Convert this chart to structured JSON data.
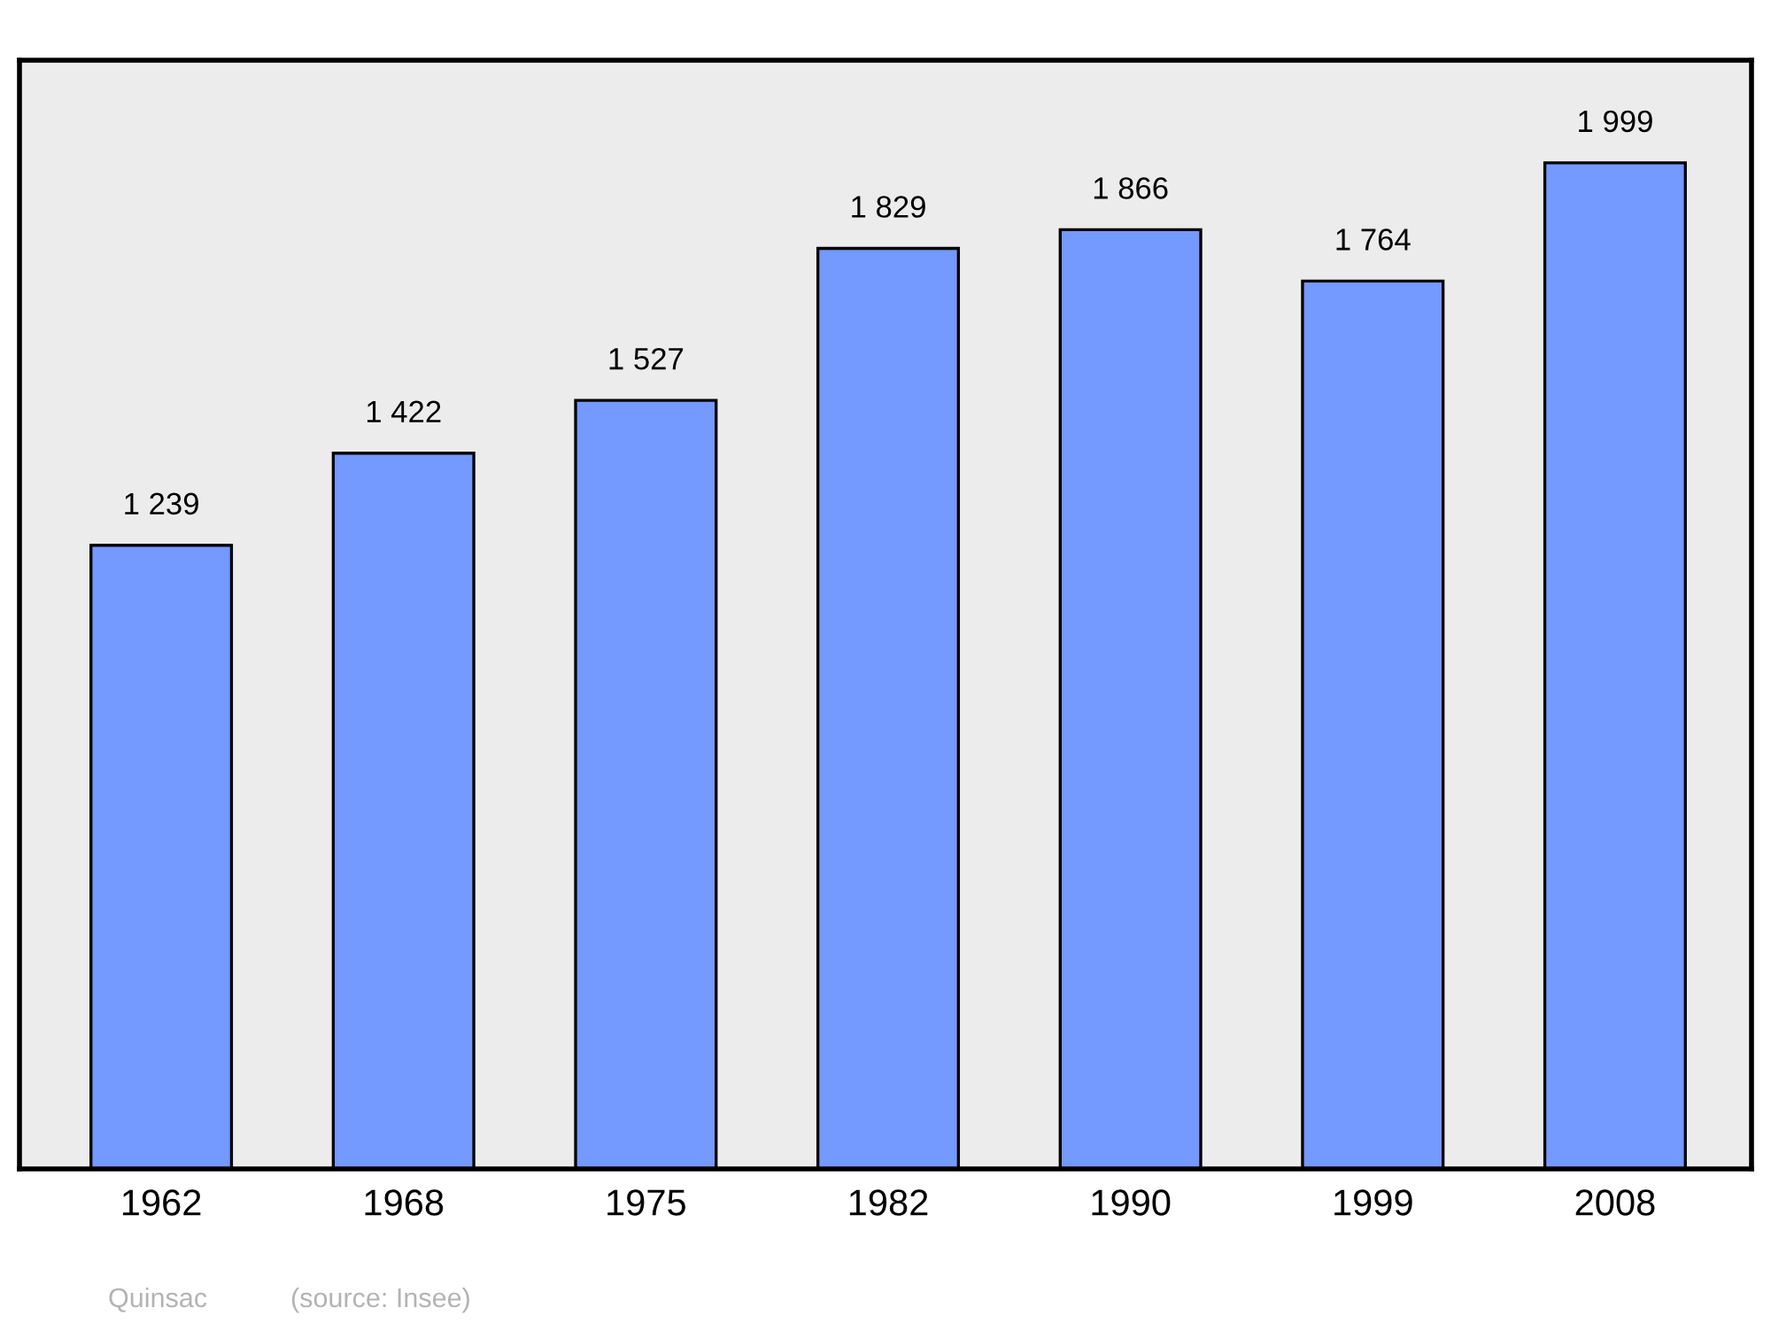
{
  "chart_data": {
    "type": "bar",
    "categories": [
      "1962",
      "1968",
      "1975",
      "1982",
      "1990",
      "1999",
      "2008"
    ],
    "values": [
      1239,
      1422,
      1527,
      1829,
      1866,
      1764,
      1999
    ],
    "color": "#7499ff",
    "value_labels": [
      "1 239",
      "1 422",
      "1 527",
      "1 829",
      "1 866",
      "1 764",
      "1 999"
    ],
    "tick_labels": "x",
    "grid": false,
    "legend": false,
    "annotations": [
      "Quinsac",
      "(source: Insee)"
    ]
  }
}
